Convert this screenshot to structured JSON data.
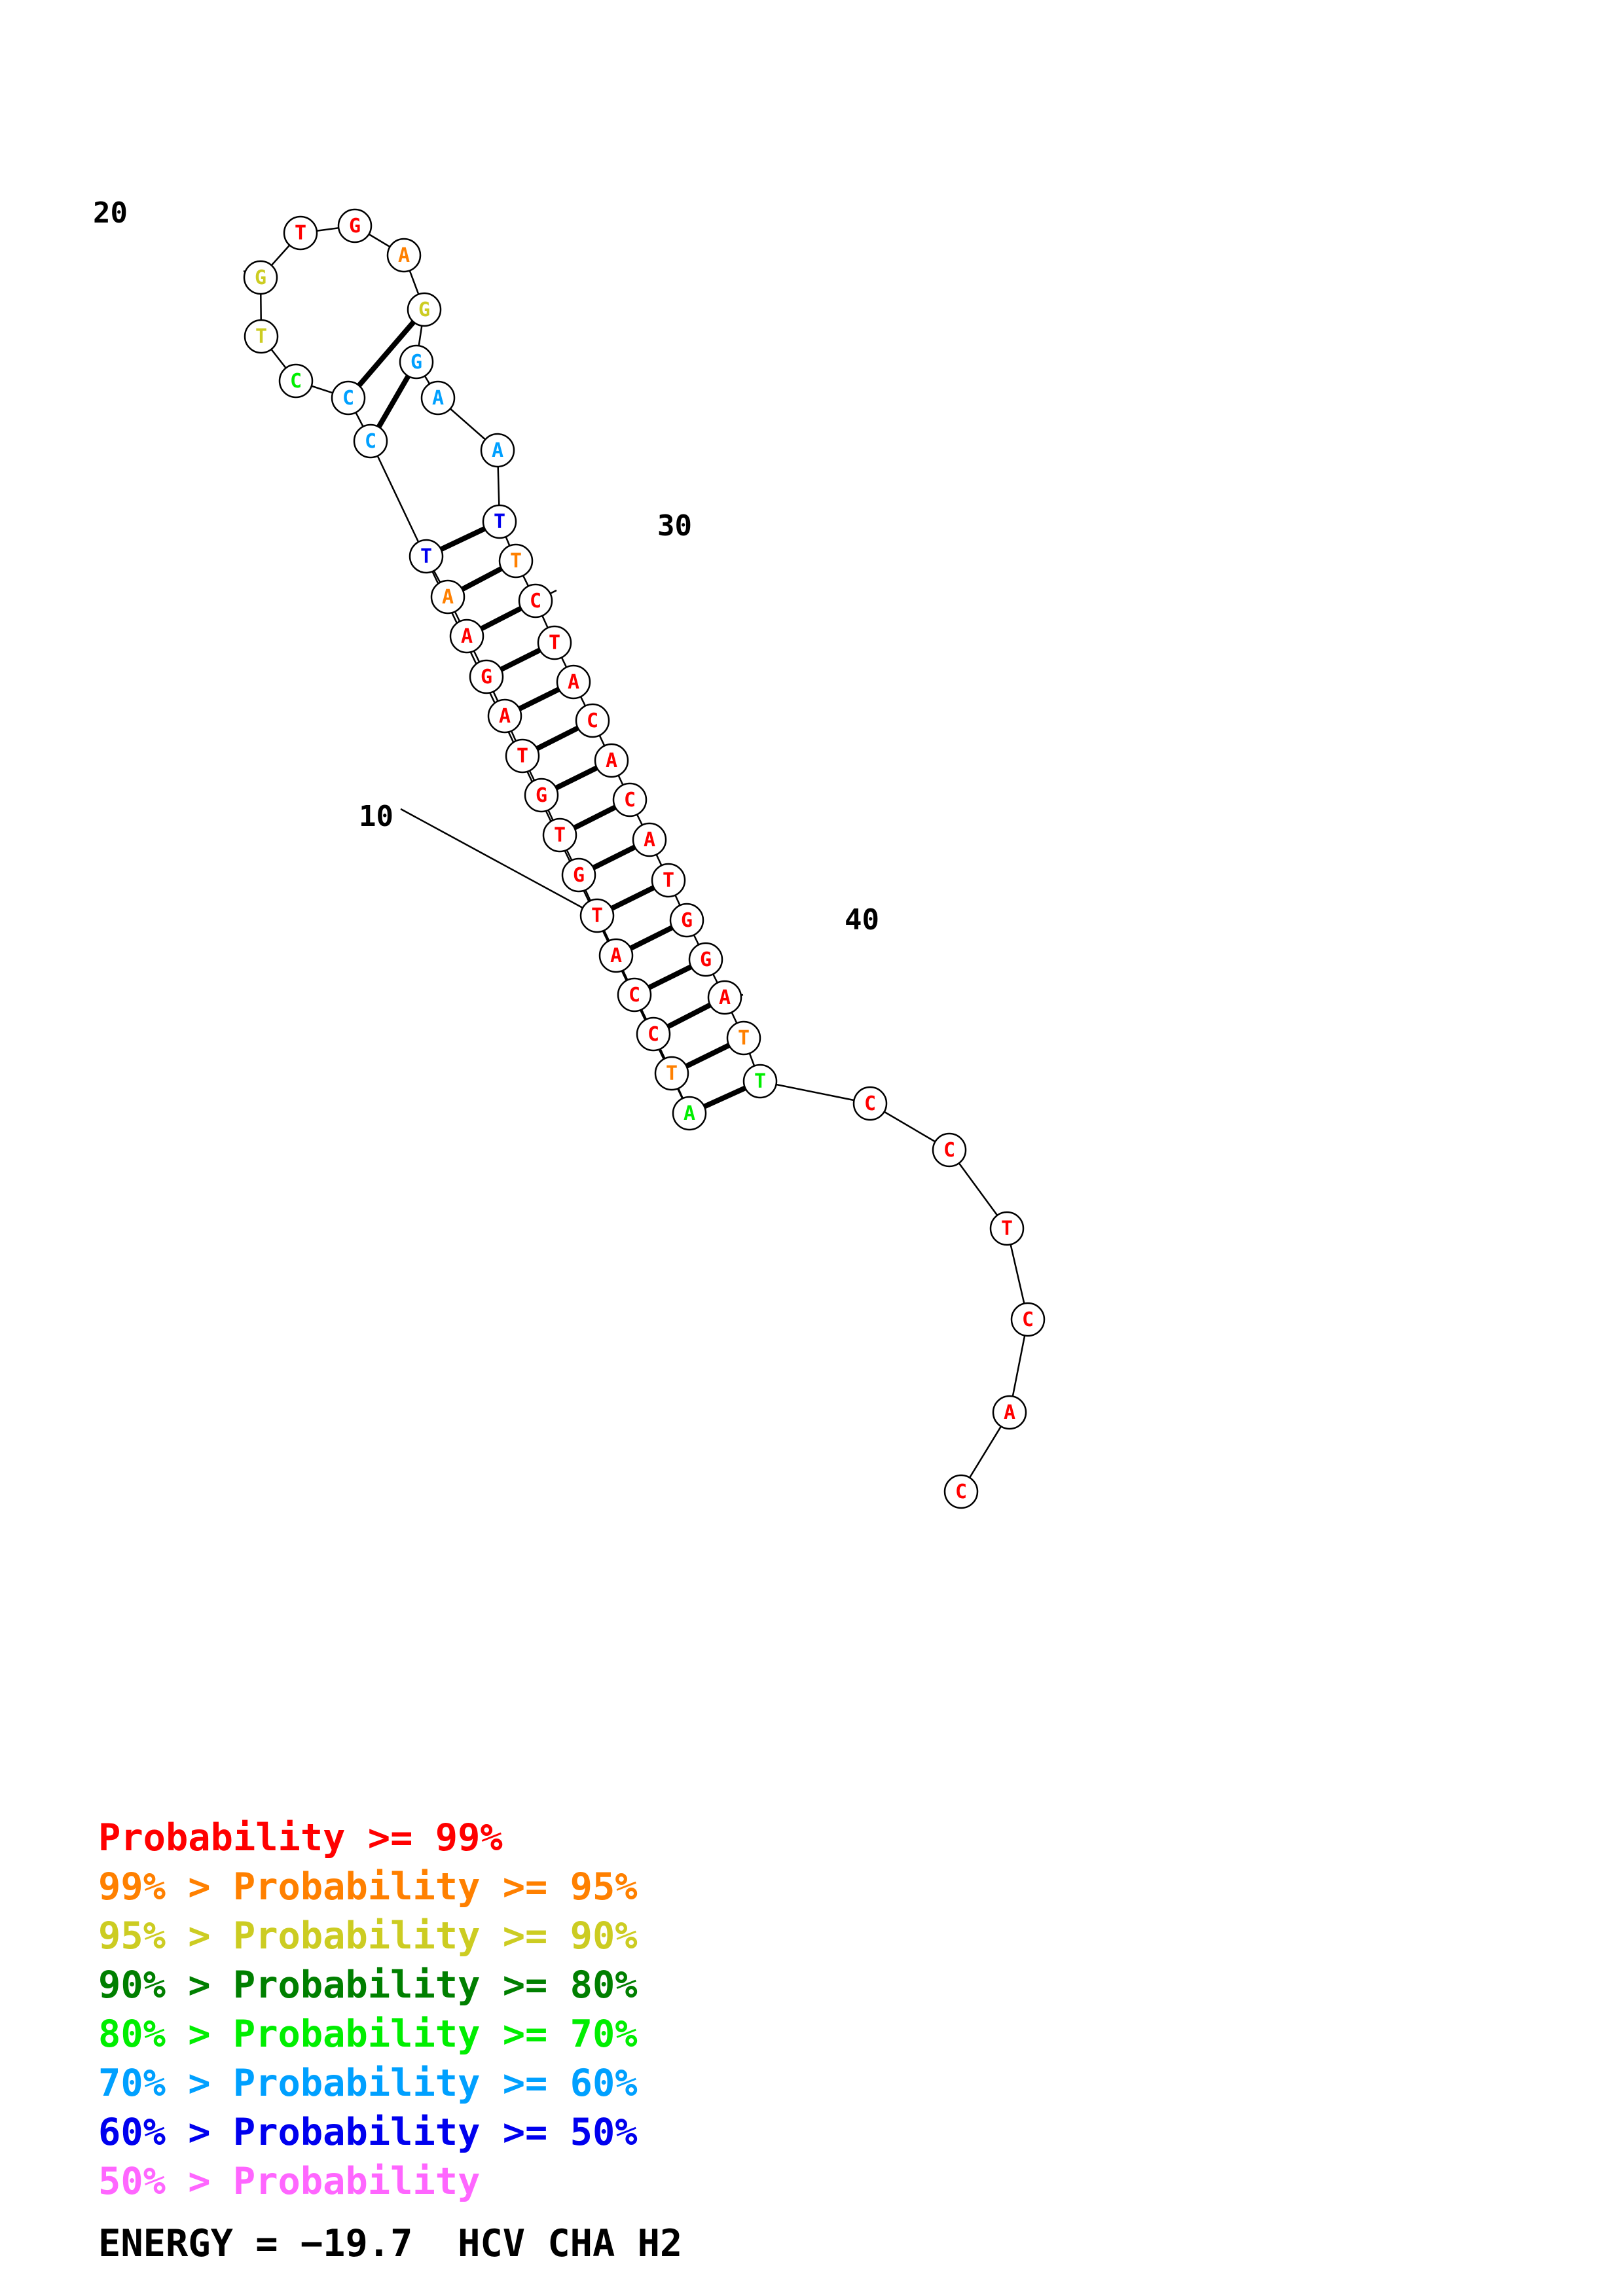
{
  "diagram": {
    "sequence": [
      "T",
      "A",
      "A",
      "G",
      "A",
      "T",
      "G",
      "T",
      "G",
      "T",
      "A",
      "C",
      "C",
      "T",
      "A",
      "C",
      "C",
      "C",
      "T",
      "G",
      "T",
      "G",
      "A",
      "G",
      "G",
      "A",
      "A",
      "T",
      "T",
      "C",
      "T",
      "A",
      "C",
      "A",
      "C",
      "A",
      "T",
      "G",
      "G",
      "A",
      "T",
      "T",
      "C",
      "C",
      "T",
      "C",
      "A",
      "C"
    ],
    "colors": [
      "blue",
      "orange",
      "red",
      "red",
      "red",
      "red",
      "red",
      "red",
      "red",
      "red",
      "red",
      "red",
      "red",
      "orange",
      "green",
      "sky",
      "sky",
      "green",
      "yellow",
      "yellow",
      "red",
      "red",
      "orange",
      "yellow",
      "sky",
      "sky",
      "sky",
      "blue",
      "orange",
      "red",
      "red",
      "red",
      "red",
      "red",
      "red",
      "red",
      "red",
      "red",
      "red",
      "red",
      "orange",
      "green",
      "red",
      "red",
      "red",
      "red",
      "red",
      "red"
    ],
    "pairs": [
      [
        1,
        28
      ],
      [
        2,
        29
      ],
      [
        3,
        30
      ],
      [
        4,
        31
      ],
      [
        5,
        32
      ],
      [
        6,
        33
      ],
      [
        7,
        34
      ],
      [
        8,
        35
      ],
      [
        9,
        36
      ],
      [
        10,
        37
      ],
      [
        11,
        38
      ],
      [
        12,
        39
      ],
      [
        13,
        40
      ],
      [
        14,
        41
      ],
      [
        15,
        42
      ],
      [
        16,
        25
      ],
      [
        17,
        24
      ]
    ],
    "numbers": [
      {
        "index": 10,
        "label": "10"
      },
      {
        "index": 20,
        "label": "20"
      },
      {
        "index": 30,
        "label": "30"
      },
      {
        "index": 40,
        "label": "40"
      }
    ],
    "palette": {
      "red": "#ff0000",
      "orange": "#ff8000",
      "yellow": "#cccc22",
      "darkgreen": "#007f00",
      "green": "#00ee00",
      "sky": "#00a0ff",
      "blue": "#0000ee",
      "pink": "#ff66ff"
    }
  },
  "legend": {
    "lines": [
      {
        "prefix": "",
        "text": "Probability >= 99%",
        "color": "#ff0000"
      },
      {
        "prefix": "99% > ",
        "text": "Probability >= 95%",
        "color": "#ff8000"
      },
      {
        "prefix": "95% > ",
        "text": "Probability >= 90%",
        "color": "#cccc22"
      },
      {
        "prefix": "90% > ",
        "text": "Probability >= 80%",
        "color": "#007f00"
      },
      {
        "prefix": "80% > ",
        "text": "Probability >= 70%",
        "color": "#00ee00"
      },
      {
        "prefix": "70% > ",
        "text": "Probability >= 60%",
        "color": "#00a0ff"
      },
      {
        "prefix": "60% > ",
        "text": "Probability >= 50%",
        "color": "#0000ee"
      },
      {
        "prefix": "50% > ",
        "text": "Probability",
        "color": "#ff66ff"
      }
    ],
    "energy": "ENERGY = −19.7  HCV CHA H2"
  }
}
